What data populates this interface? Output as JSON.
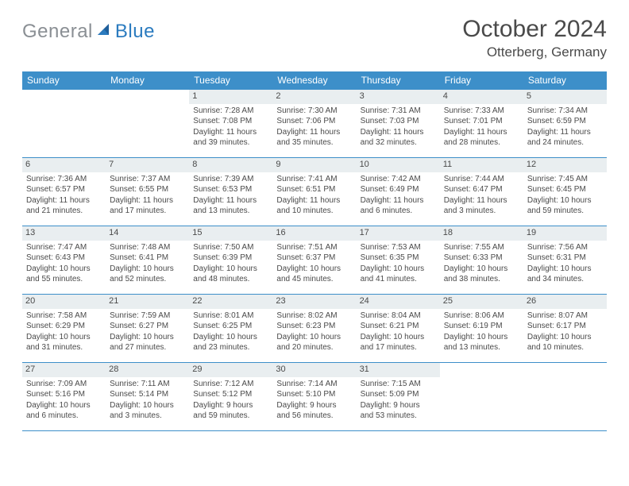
{
  "logo": {
    "gray": "General",
    "blue": "Blue"
  },
  "title": "October 2024",
  "location": "Otterberg, Germany",
  "colors": {
    "header_bg": "#3d8fc9",
    "header_text": "#ffffff",
    "daynum_bg": "#e9eef0",
    "border": "#3d8fc9",
    "text": "#4a4a4a",
    "logo_gray": "#8a8f94",
    "logo_blue": "#2b7bbf"
  },
  "weekdays": [
    "Sunday",
    "Monday",
    "Tuesday",
    "Wednesday",
    "Thursday",
    "Friday",
    "Saturday"
  ],
  "weeks": [
    [
      null,
      null,
      {
        "n": "1",
        "sr": "Sunrise: 7:28 AM",
        "ss": "Sunset: 7:08 PM",
        "d1": "Daylight: 11 hours",
        "d2": "and 39 minutes."
      },
      {
        "n": "2",
        "sr": "Sunrise: 7:30 AM",
        "ss": "Sunset: 7:06 PM",
        "d1": "Daylight: 11 hours",
        "d2": "and 35 minutes."
      },
      {
        "n": "3",
        "sr": "Sunrise: 7:31 AM",
        "ss": "Sunset: 7:03 PM",
        "d1": "Daylight: 11 hours",
        "d2": "and 32 minutes."
      },
      {
        "n": "4",
        "sr": "Sunrise: 7:33 AM",
        "ss": "Sunset: 7:01 PM",
        "d1": "Daylight: 11 hours",
        "d2": "and 28 minutes."
      },
      {
        "n": "5",
        "sr": "Sunrise: 7:34 AM",
        "ss": "Sunset: 6:59 PM",
        "d1": "Daylight: 11 hours",
        "d2": "and 24 minutes."
      }
    ],
    [
      {
        "n": "6",
        "sr": "Sunrise: 7:36 AM",
        "ss": "Sunset: 6:57 PM",
        "d1": "Daylight: 11 hours",
        "d2": "and 21 minutes."
      },
      {
        "n": "7",
        "sr": "Sunrise: 7:37 AM",
        "ss": "Sunset: 6:55 PM",
        "d1": "Daylight: 11 hours",
        "d2": "and 17 minutes."
      },
      {
        "n": "8",
        "sr": "Sunrise: 7:39 AM",
        "ss": "Sunset: 6:53 PM",
        "d1": "Daylight: 11 hours",
        "d2": "and 13 minutes."
      },
      {
        "n": "9",
        "sr": "Sunrise: 7:41 AM",
        "ss": "Sunset: 6:51 PM",
        "d1": "Daylight: 11 hours",
        "d2": "and 10 minutes."
      },
      {
        "n": "10",
        "sr": "Sunrise: 7:42 AM",
        "ss": "Sunset: 6:49 PM",
        "d1": "Daylight: 11 hours",
        "d2": "and 6 minutes."
      },
      {
        "n": "11",
        "sr": "Sunrise: 7:44 AM",
        "ss": "Sunset: 6:47 PM",
        "d1": "Daylight: 11 hours",
        "d2": "and 3 minutes."
      },
      {
        "n": "12",
        "sr": "Sunrise: 7:45 AM",
        "ss": "Sunset: 6:45 PM",
        "d1": "Daylight: 10 hours",
        "d2": "and 59 minutes."
      }
    ],
    [
      {
        "n": "13",
        "sr": "Sunrise: 7:47 AM",
        "ss": "Sunset: 6:43 PM",
        "d1": "Daylight: 10 hours",
        "d2": "and 55 minutes."
      },
      {
        "n": "14",
        "sr": "Sunrise: 7:48 AM",
        "ss": "Sunset: 6:41 PM",
        "d1": "Daylight: 10 hours",
        "d2": "and 52 minutes."
      },
      {
        "n": "15",
        "sr": "Sunrise: 7:50 AM",
        "ss": "Sunset: 6:39 PM",
        "d1": "Daylight: 10 hours",
        "d2": "and 48 minutes."
      },
      {
        "n": "16",
        "sr": "Sunrise: 7:51 AM",
        "ss": "Sunset: 6:37 PM",
        "d1": "Daylight: 10 hours",
        "d2": "and 45 minutes."
      },
      {
        "n": "17",
        "sr": "Sunrise: 7:53 AM",
        "ss": "Sunset: 6:35 PM",
        "d1": "Daylight: 10 hours",
        "d2": "and 41 minutes."
      },
      {
        "n": "18",
        "sr": "Sunrise: 7:55 AM",
        "ss": "Sunset: 6:33 PM",
        "d1": "Daylight: 10 hours",
        "d2": "and 38 minutes."
      },
      {
        "n": "19",
        "sr": "Sunrise: 7:56 AM",
        "ss": "Sunset: 6:31 PM",
        "d1": "Daylight: 10 hours",
        "d2": "and 34 minutes."
      }
    ],
    [
      {
        "n": "20",
        "sr": "Sunrise: 7:58 AM",
        "ss": "Sunset: 6:29 PM",
        "d1": "Daylight: 10 hours",
        "d2": "and 31 minutes."
      },
      {
        "n": "21",
        "sr": "Sunrise: 7:59 AM",
        "ss": "Sunset: 6:27 PM",
        "d1": "Daylight: 10 hours",
        "d2": "and 27 minutes."
      },
      {
        "n": "22",
        "sr": "Sunrise: 8:01 AM",
        "ss": "Sunset: 6:25 PM",
        "d1": "Daylight: 10 hours",
        "d2": "and 23 minutes."
      },
      {
        "n": "23",
        "sr": "Sunrise: 8:02 AM",
        "ss": "Sunset: 6:23 PM",
        "d1": "Daylight: 10 hours",
        "d2": "and 20 minutes."
      },
      {
        "n": "24",
        "sr": "Sunrise: 8:04 AM",
        "ss": "Sunset: 6:21 PM",
        "d1": "Daylight: 10 hours",
        "d2": "and 17 minutes."
      },
      {
        "n": "25",
        "sr": "Sunrise: 8:06 AM",
        "ss": "Sunset: 6:19 PM",
        "d1": "Daylight: 10 hours",
        "d2": "and 13 minutes."
      },
      {
        "n": "26",
        "sr": "Sunrise: 8:07 AM",
        "ss": "Sunset: 6:17 PM",
        "d1": "Daylight: 10 hours",
        "d2": "and 10 minutes."
      }
    ],
    [
      {
        "n": "27",
        "sr": "Sunrise: 7:09 AM",
        "ss": "Sunset: 5:16 PM",
        "d1": "Daylight: 10 hours",
        "d2": "and 6 minutes."
      },
      {
        "n": "28",
        "sr": "Sunrise: 7:11 AM",
        "ss": "Sunset: 5:14 PM",
        "d1": "Daylight: 10 hours",
        "d2": "and 3 minutes."
      },
      {
        "n": "29",
        "sr": "Sunrise: 7:12 AM",
        "ss": "Sunset: 5:12 PM",
        "d1": "Daylight: 9 hours",
        "d2": "and 59 minutes."
      },
      {
        "n": "30",
        "sr": "Sunrise: 7:14 AM",
        "ss": "Sunset: 5:10 PM",
        "d1": "Daylight: 9 hours",
        "d2": "and 56 minutes."
      },
      {
        "n": "31",
        "sr": "Sunrise: 7:15 AM",
        "ss": "Sunset: 5:09 PM",
        "d1": "Daylight: 9 hours",
        "d2": "and 53 minutes."
      },
      null,
      null
    ]
  ]
}
